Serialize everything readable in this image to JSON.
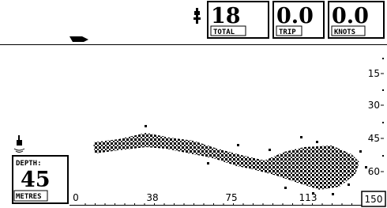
{
  "header": {
    "readouts": [
      {
        "value": "18",
        "label": "TOTAL"
      },
      {
        "value": "0.0",
        "label": "TRIP"
      },
      {
        "value": "0.0",
        "label": "KNOTS"
      }
    ]
  },
  "depth_scale": [
    "15",
    "30",
    "45",
    "60"
  ],
  "distance_scale": [
    "0",
    "38",
    "75",
    "113",
    "150"
  ],
  "depth_readout": {
    "label": "DEPTH:",
    "value": "45",
    "unit": "METRES"
  }
}
